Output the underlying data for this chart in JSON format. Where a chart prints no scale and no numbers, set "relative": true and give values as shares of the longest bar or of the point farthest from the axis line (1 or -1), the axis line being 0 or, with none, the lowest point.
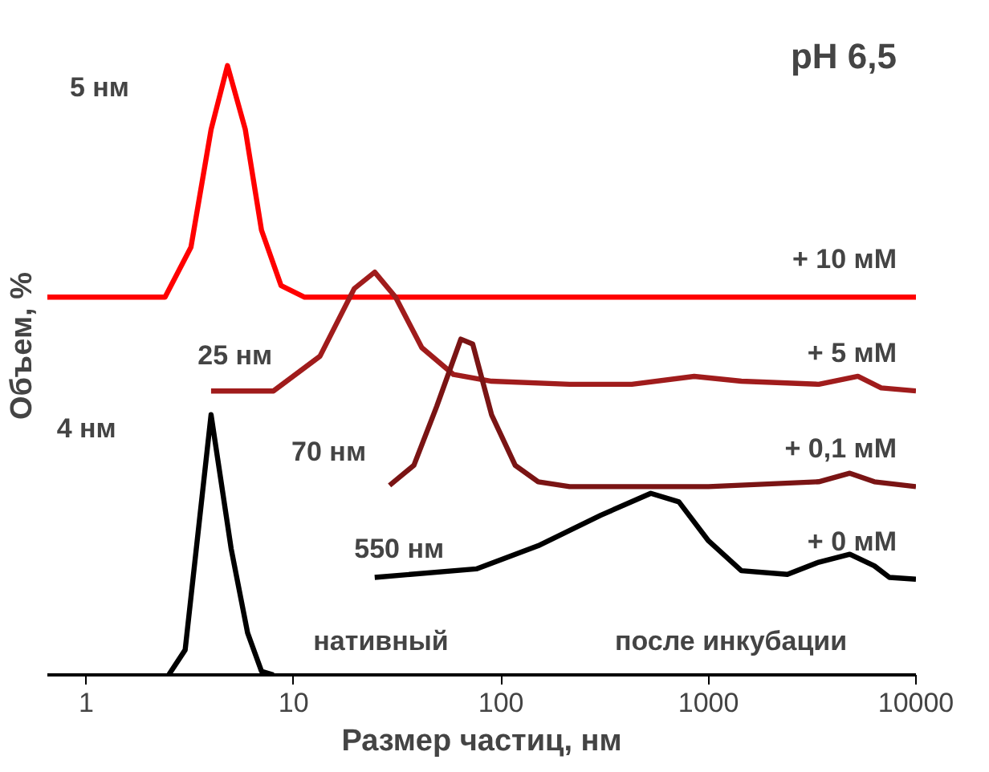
{
  "chart_data": {
    "type": "line",
    "relative": true,
    "xlabel": "Размер частиц, нм",
    "ylabel": "Объем, %",
    "log": "x",
    "xlim": [
      0.65,
      10000
    ],
    "xticks": [
      1,
      10,
      100,
      1000,
      10000
    ],
    "grid": false,
    "marker": "none",
    "line_style": "solid",
    "series": [
      {
        "name": "+ 10 мМ",
        "color": "#ff0000",
        "x": [
          0.65,
          2.4,
          3.2,
          4,
          4.8,
          5.85,
          7,
          8.7,
          11.3,
          10000
        ],
        "values": [
          0.62,
          0.62,
          0.702,
          0.895,
          1.0,
          0.895,
          0.73,
          0.639,
          0.62,
          0.62
        ]
      },
      {
        "name": "+ 5 мМ",
        "color": "#a01c1c",
        "x": [
          4,
          8,
          13.4,
          19.6,
          24.6,
          31,
          41.5,
          59,
          90,
          214,
          427,
          853,
          1440,
          3400,
          5250,
          6800,
          10000
        ],
        "values": [
          0.466,
          0.466,
          0.523,
          0.634,
          0.661,
          0.62,
          0.537,
          0.493,
          0.482,
          0.477,
          0.477,
          0.49,
          0.482,
          0.477,
          0.49,
          0.471,
          0.466
        ]
      },
      {
        "name": "+ 0,1 мМ",
        "color": "#7a1414",
        "x": [
          29,
          38,
          49,
          64,
          73,
          90,
          117,
          151,
          214,
          1000,
          3400,
          4800,
          6300,
          10000
        ],
        "values": [
          0.311,
          0.344,
          0.441,
          0.551,
          0.543,
          0.427,
          0.344,
          0.317,
          0.309,
          0.309,
          0.317,
          0.331,
          0.317,
          0.309
        ]
      },
      {
        "name": "+ 0 мМ",
        "color": "#000000",
        "x": [
          24.6,
          76,
          151,
          302,
          527,
          720,
          1000,
          1440,
          2400,
          3400,
          4800,
          6300,
          7450,
          10000
        ],
        "values": [
          0.16,
          0.174,
          0.212,
          0.262,
          0.298,
          0.284,
          0.22,
          0.171,
          0.165,
          0.185,
          0.198,
          0.179,
          0.16,
          0.157
        ]
      },
      {
        "color": "#000000",
        "x": [
          2.5,
          3,
          4,
          5,
          6,
          7,
          8
        ],
        "values": [
          0,
          0.041,
          0.427,
          0.207,
          0.069,
          0.006,
          0
        ]
      }
    ],
    "annotations": [
      "pH 6,5",
      "5 нм",
      "25 нм",
      "70 нм",
      "4 нм",
      "550 нм",
      "нативный",
      "после инкубации"
    ]
  }
}
